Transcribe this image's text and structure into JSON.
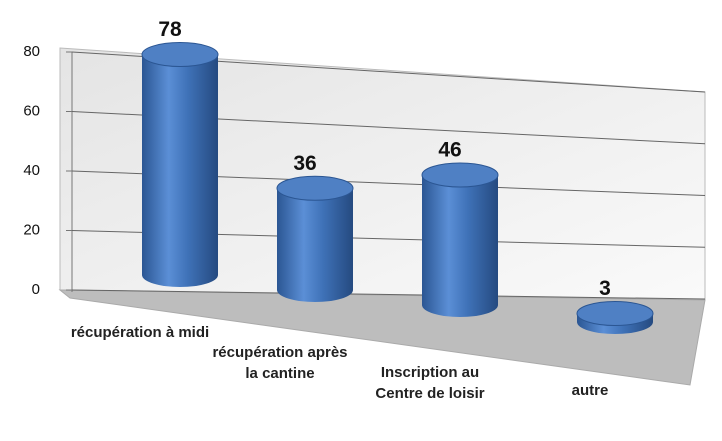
{
  "chart_data": {
    "type": "cylinder",
    "categories": [
      "récupération à midi",
      "récupération après la cantine",
      "Inscription au Centre de loisir",
      "autre"
    ],
    "values": [
      78,
      36,
      46,
      3
    ],
    "color": "#3f72b8",
    "ylim": [
      0,
      80
    ],
    "yticks": [
      0,
      20,
      40,
      60,
      80
    ],
    "grid": true
  }
}
